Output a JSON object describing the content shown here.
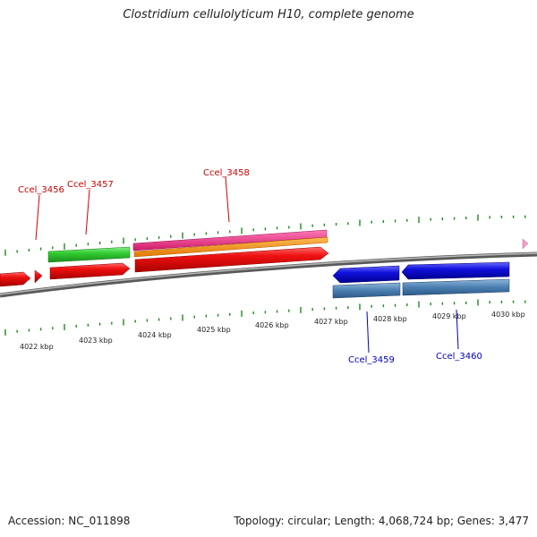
{
  "title": "Clostridium cellulolyticum H10, complete genome",
  "footer": {
    "accession": "Accession: NC_011898",
    "summary": "Topology: circular; Length: 4,068,724 bp; Genes: 3,477"
  },
  "colors": {
    "backbone": "#8c8c8c",
    "tick": "#1e8a1e",
    "forward_label": "#cc0000",
    "reverse_label": "#0000bb",
    "cds_red": "#ee1111",
    "gene_green": "#33cc33",
    "gene_magenta": "#ee2277",
    "gene_orange": "#ff8800",
    "cds_blue": "#1111dd",
    "gene_steel": "#4a7fb0",
    "marker_pink": "#f0a0cc"
  },
  "tick_labels": [
    "4022 kbp",
    "4023 kbp",
    "4024 kbp",
    "4025 kbp",
    "4026 kbp",
    "4027 kbp",
    "4028 kbp",
    "4029 kbp",
    "4030 kbp"
  ],
  "gene_labels": {
    "forward": [
      "Ccel_3456",
      "Ccel_3457",
      "Ccel_3458"
    ],
    "reverse": [
      "Ccel_3459",
      "Ccel_3460"
    ]
  }
}
